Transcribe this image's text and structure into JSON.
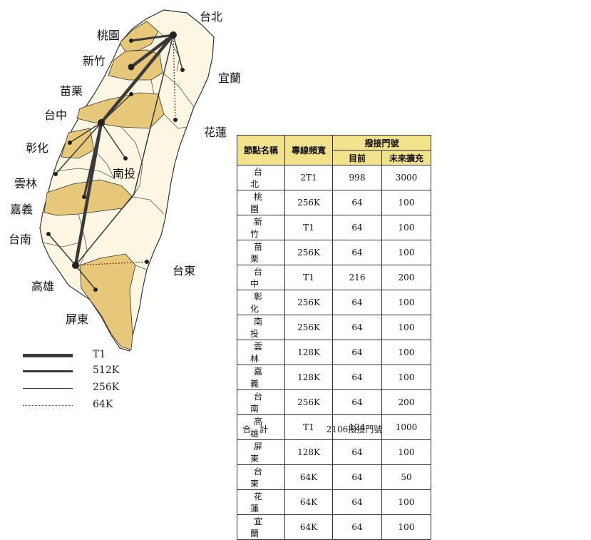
{
  "cities": {
    "taipei": "台北",
    "taoyuan": "桃園",
    "hsinchu": "新竹",
    "yilan": "宜蘭",
    "miaoli": "苗栗",
    "taichung": "台中",
    "hualien": "花蓮",
    "changhua": "彰化",
    "nantou": "南投",
    "yunlin": "雲林",
    "chiayi": "嘉義",
    "tainan": "台南",
    "taitung": "台東",
    "kaohsiung": "高雄",
    "pingtung": "屏東"
  },
  "legend": {
    "t1": "T1",
    "k512": "512K",
    "k256": "256K",
    "k64": "64K"
  },
  "table": {
    "headers": {
      "node": "節點名稱",
      "bandwidth": "專線頻寬",
      "ports": "撥接門號",
      "current": "目前",
      "future": "未來擴充"
    },
    "rows": [
      {
        "name": "台北",
        "bw": "2T1",
        "cur": "998",
        "fut": "3000"
      },
      {
        "name": "桃園",
        "bw": "256K",
        "cur": "64",
        "fut": "100"
      },
      {
        "name": "新竹",
        "bw": "T1",
        "cur": "64",
        "fut": "100"
      },
      {
        "name": "苗栗",
        "bw": "256K",
        "cur": "64",
        "fut": "100"
      },
      {
        "name": "台中",
        "bw": "T1",
        "cur": "216",
        "fut": "200"
      },
      {
        "name": "彰化",
        "bw": "256K",
        "cur": "64",
        "fut": "100"
      },
      {
        "name": "南投",
        "bw": "256K",
        "cur": "64",
        "fut": "100"
      },
      {
        "name": "雲林",
        "bw": "128K",
        "cur": "64",
        "fut": "100"
      },
      {
        "name": "嘉義",
        "bw": "128K",
        "cur": "64",
        "fut": "100"
      },
      {
        "name": "台南",
        "bw": "256K",
        "cur": "64",
        "fut": "200"
      },
      {
        "name": "高雄",
        "bw": "T1",
        "cur": "124",
        "fut": "1000"
      },
      {
        "name": "屏東",
        "bw": "128K",
        "cur": "64",
        "fut": "100"
      },
      {
        "name": "台東",
        "bw": "64K",
        "cur": "64",
        "fut": "50"
      },
      {
        "name": "花蓮",
        "bw": "64K",
        "cur": "64",
        "fut": "100"
      },
      {
        "name": "宜蘭",
        "bw": "64K",
        "cur": "64",
        "fut": "100"
      }
    ],
    "total_label": "合　計",
    "total_value": "2106撥接門號"
  },
  "colors": {
    "shaded": "#e7c77a",
    "land": "#fdf6e3",
    "line": "#3a3a3a"
  }
}
